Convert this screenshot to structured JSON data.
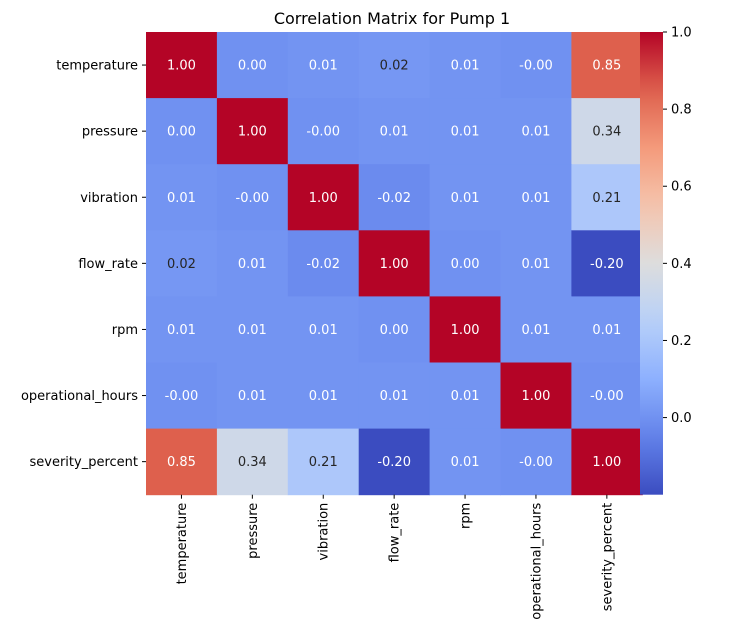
{
  "chart_data": {
    "type": "heatmap",
    "title": "Correlation Matrix for Pump 1",
    "xlabel": "",
    "ylabel": "",
    "categories_x": [
      "temperature",
      "pressure",
      "vibration",
      "flow_rate",
      "rpm",
      "operational_hours",
      "severity_percent"
    ],
    "categories_y": [
      "temperature",
      "pressure",
      "vibration",
      "flow_rate",
      "rpm",
      "operational_hours",
      "severity_percent"
    ],
    "values": [
      [
        1.0,
        0.0,
        0.01,
        0.02,
        0.01,
        -0.0,
        0.85
      ],
      [
        0.0,
        1.0,
        -0.0,
        0.01,
        0.01,
        0.01,
        0.34
      ],
      [
        0.01,
        -0.0,
        1.0,
        -0.02,
        0.01,
        0.01,
        0.21
      ],
      [
        0.02,
        0.01,
        -0.02,
        1.0,
        0.0,
        0.01,
        -0.2
      ],
      [
        0.01,
        0.01,
        0.01,
        0.0,
        1.0,
        0.01,
        0.01
      ],
      [
        -0.0,
        0.01,
        0.01,
        0.01,
        0.01,
        1.0,
        -0.0
      ],
      [
        0.85,
        0.34,
        0.21,
        -0.2,
        0.01,
        -0.0,
        1.0
      ]
    ],
    "value_labels": [
      [
        "1.00",
        "0.00",
        "0.01",
        "0.02",
        "0.01",
        "-0.00",
        "0.85"
      ],
      [
        "0.00",
        "1.00",
        "-0.00",
        "0.01",
        "0.01",
        "0.01",
        "0.34"
      ],
      [
        "0.01",
        "-0.00",
        "1.00",
        "-0.02",
        "0.01",
        "0.01",
        "0.21"
      ],
      [
        "0.02",
        "0.01",
        "-0.02",
        "1.00",
        "0.00",
        "0.01",
        "-0.20"
      ],
      [
        "0.01",
        "0.01",
        "0.01",
        "0.00",
        "1.00",
        "0.01",
        "0.01"
      ],
      [
        "-0.00",
        "0.01",
        "0.01",
        "0.01",
        "0.01",
        "1.00",
        "-0.00"
      ],
      [
        "0.85",
        "0.34",
        "0.21",
        "-0.20",
        "0.01",
        "-0.00",
        "1.00"
      ]
    ],
    "colormap": "coolwarm",
    "colorbar": {
      "vmin": -0.2,
      "vmax": 1.0,
      "ticks": [
        0.0,
        0.2,
        0.4,
        0.6,
        0.8,
        1.0
      ],
      "tick_labels": [
        "0.0",
        "0.2",
        "0.4",
        "0.6",
        "0.8",
        "1.0"
      ]
    },
    "grid": false,
    "legend": "colorbar-right"
  }
}
